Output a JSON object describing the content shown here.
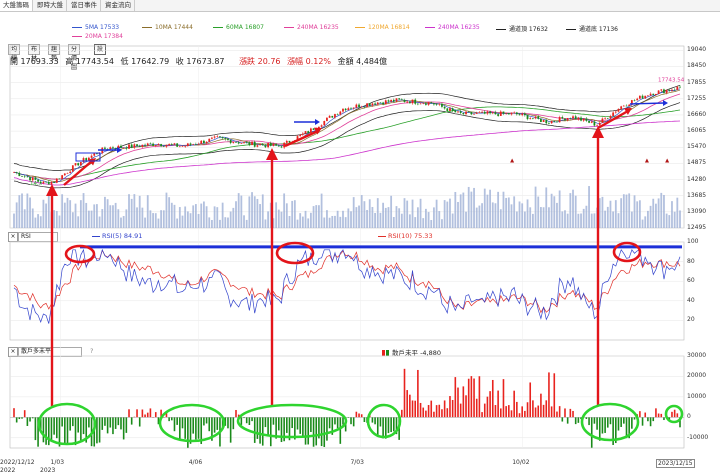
{
  "tabs": [
    {
      "label": "大盤籌碼"
    },
    {
      "label": "即時大盤"
    },
    {
      "label": "當日事件"
    },
    {
      "label": "資金流向"
    }
  ],
  "legend": {
    "ma5": "5MA 17533",
    "ma10": "10MA 17444",
    "ma60": "60MA 16807",
    "ma240a": "240MA 16235",
    "ma120": "120MA 16814",
    "ma240b": "240MA 16235",
    "upper": "通道頂 17632",
    "lower": "通道底 17136",
    "ma20": "20MA 17384"
  },
  "buttons": [
    "均線",
    "布林",
    "趨勢",
    "分價圖",
    "設"
  ],
  "ohlc": {
    "open": "開 17693.33",
    "high": "高 17743.54",
    "low": "低 17642.79",
    "close": "收 17673.87",
    "change": "漲跌 20.76",
    "pct": "漲幅 0.12%",
    "amount": "金額 4,484億"
  },
  "rsi_panel": {
    "select": "RSI",
    "rsi5": "RSI(5) 84.91",
    "rsi10": "RSI(10) 75.33"
  },
  "diff_panel": {
    "select": "散戶多未平",
    "help": "?",
    "label": "散戶未平 -4,880"
  },
  "price_callout": "17743.54",
  "price_start_label": "14...",
  "dates": [
    "2022/12/12",
    "1/03",
    "2023",
    "4/06",
    "7/03",
    "10/02",
    "2023/12/15"
  ],
  "colors": {
    "ma5": "#3355cc",
    "ma10": "#8a6d2a",
    "ma20": "#e0409a",
    "ma60": "#2aa02a",
    "ma120": "#f0a830",
    "ma240": "#cc33cc",
    "channel": "#222222",
    "up": "#e8231e",
    "down": "#1a8a1a",
    "volume": "#9fb0d6",
    "rsi5": "#3344cc",
    "rsi10": "#e0302a",
    "annotation_red": "#e3141a",
    "annotation_blue": "#1c2fd8",
    "annotation_green": "#2fd42f"
  },
  "chart_data": [
    {
      "type": "candlestick",
      "title": "",
      "x_range": [
        "2022/12/12",
        "2023/12/15"
      ],
      "ylim": [
        12495,
        19200
      ],
      "y_ticks": [
        19040,
        18450,
        17855,
        17255,
        16660,
        16065,
        15470,
        14875,
        14280,
        13685,
        13090,
        12495
      ],
      "price_path": [
        [
          "2022/12/12",
          14550
        ],
        [
          "2022/12/28",
          14150
        ],
        [
          "2023/01/03",
          14200
        ],
        [
          "2023/01/17",
          14900
        ],
        [
          "2023/02/01",
          15450
        ],
        [
          "2023/02/15",
          15500
        ],
        [
          "2023/03/01",
          15600
        ],
        [
          "2023/03/15",
          15500
        ],
        [
          "2023/04/03",
          15800
        ],
        [
          "2023/04/20",
          15600
        ],
        [
          "2023/05/08",
          15500
        ],
        [
          "2023/05/25",
          16100
        ],
        [
          "2023/06/12",
          16900
        ],
        [
          "2023/06/28",
          17100
        ],
        [
          "2023/07/12",
          17200
        ],
        [
          "2023/07/31",
          17100
        ],
        [
          "2023/08/15",
          16700
        ],
        [
          "2023/09/01",
          16700
        ],
        [
          "2023/09/15",
          16700
        ],
        [
          "2023/10/03",
          16400
        ],
        [
          "2023/10/16",
          16600
        ],
        [
          "2023/10/30",
          16300
        ],
        [
          "2023/11/13",
          17000
        ],
        [
          "2023/11/28",
          17450
        ],
        [
          "2023/12/15",
          17674
        ]
      ],
      "last_close": 17673.87,
      "last_high": 17743.54
    },
    {
      "type": "line",
      "title": "RSI",
      "ylim": [
        0,
        100
      ],
      "y_ticks": [
        100,
        80,
        60,
        40,
        20
      ],
      "series": [
        {
          "name": "RSI(5)",
          "last": 84.91
        },
        {
          "name": "RSI(10)",
          "last": 75.33
        }
      ],
      "reference_line": 95
    },
    {
      "type": "bar",
      "title": "散戶多未平",
      "ylim": [
        -15000,
        30000
      ],
      "y_ticks": [
        30000,
        20000,
        10000,
        0,
        -10000
      ],
      "series": [
        {
          "name": "散戶未平",
          "last": -4880
        }
      ]
    }
  ]
}
